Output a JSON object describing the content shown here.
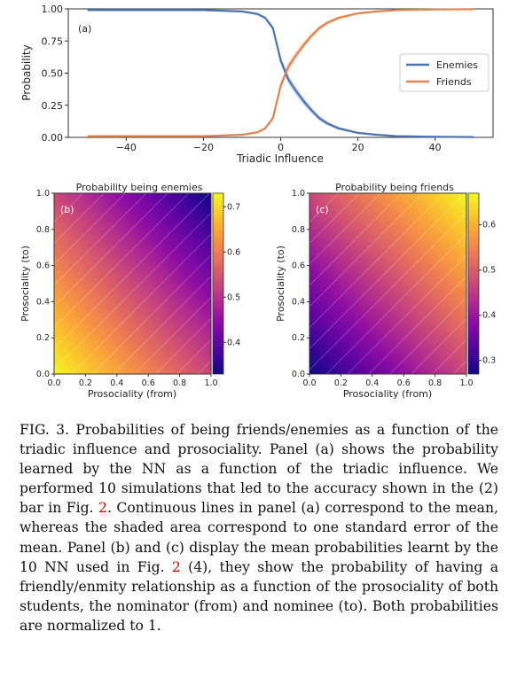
{
  "chart_data": [
    {
      "type": "line",
      "panel_label": "(a)",
      "xlabel": "Triadic Influence",
      "ylabel": "Probability",
      "xlim": [
        -55,
        55
      ],
      "ylim": [
        0,
        1
      ],
      "x_ticks": [
        -40,
        -20,
        0,
        20,
        40
      ],
      "x_tick_labels": [
        "−40",
        "−20",
        "0",
        "20",
        "40"
      ],
      "y_ticks": [
        0,
        0.25,
        0.5,
        0.75,
        1.0
      ],
      "y_tick_labels": [
        "0.00",
        "0.25",
        "0.50",
        "0.75",
        "1.00"
      ],
      "legend_position": "center-right",
      "grid": false,
      "series": [
        {
          "name": "Enemies",
          "color": "#4c72b0",
          "x": [
            -50,
            -40,
            -30,
            -20,
            -10,
            -6,
            -4,
            -2,
            0,
            2,
            4,
            6,
            8,
            10,
            12,
            15,
            20,
            25,
            30,
            40,
            50
          ],
          "values": [
            0.99,
            0.99,
            0.99,
            0.99,
            0.98,
            0.96,
            0.93,
            0.85,
            0.6,
            0.45,
            0.36,
            0.28,
            0.21,
            0.15,
            0.11,
            0.07,
            0.035,
            0.02,
            0.01,
            0.005,
            0.003
          ]
        },
        {
          "name": "Friends",
          "color": "#dd8452",
          "x": [
            -50,
            -40,
            -30,
            -20,
            -10,
            -6,
            -4,
            -2,
            0,
            2,
            4,
            6,
            8,
            10,
            12,
            15,
            20,
            25,
            30,
            40,
            50
          ],
          "values": [
            0.01,
            0.01,
            0.01,
            0.01,
            0.02,
            0.04,
            0.07,
            0.15,
            0.4,
            0.55,
            0.64,
            0.72,
            0.79,
            0.85,
            0.89,
            0.93,
            0.965,
            0.98,
            0.99,
            0.995,
            0.997
          ]
        }
      ]
    },
    {
      "type": "heatmap",
      "panel_label": "(b)",
      "title": "Probability being enemies",
      "xlabel": "Prosociality (from)",
      "ylabel": "Prosociality (to)",
      "xlim": [
        0,
        1
      ],
      "ylim": [
        0,
        1
      ],
      "ticks": [
        0,
        0.2,
        0.4,
        0.6,
        0.8,
        1.0
      ],
      "tick_labels": [
        "0.0",
        "0.2",
        "0.4",
        "0.6",
        "0.8",
        "1.0"
      ],
      "colormap": "plasma",
      "value_range": [
        0.33,
        0.73
      ],
      "colorbar_ticks": [
        0.4,
        0.5,
        0.6,
        0.7
      ],
      "colorbar_tick_labels": [
        "0.4",
        "0.5",
        "0.6",
        "0.7"
      ],
      "corner_values": {
        "x0_y0": 0.73,
        "x1_y0": 0.55,
        "x0_y1": 0.53,
        "x1_y1": 0.33
      }
    },
    {
      "type": "heatmap",
      "panel_label": "(c)",
      "title": "Probability being friends",
      "xlabel": "Prosociality (from)",
      "ylabel": "Prosociality (to)",
      "xlim": [
        0,
        1
      ],
      "ylim": [
        0,
        1
      ],
      "ticks": [
        0,
        0.2,
        0.4,
        0.6,
        0.8,
        1.0
      ],
      "tick_labels": [
        "0.0",
        "0.2",
        "0.4",
        "0.6",
        "0.8",
        "1.0"
      ],
      "colormap": "plasma",
      "value_range": [
        0.27,
        0.67
      ],
      "colorbar_ticks": [
        0.3,
        0.4,
        0.5,
        0.6
      ],
      "colorbar_tick_labels": [
        "0.3",
        "0.4",
        "0.5",
        "0.6"
      ],
      "corner_values": {
        "x0_y0": 0.27,
        "x1_y0": 0.45,
        "x0_y1": 0.47,
        "x1_y1": 0.67
      }
    }
  ],
  "caption": {
    "fig_label": "FIG. 3.",
    "part1": " Probabilities of being friends/enemies as a function of the triadic influence and prosociality. Panel (a) shows the probability learned by the NN as a function of the triadic influence. We performed 10 simulations that led to the accuracy shown in the (2) bar in Fig. ",
    "ref1": "2",
    "part2": ". Continuous lines in panel (a) correspond to the mean, whereas the shaded area correspond to one standard error of the mean. Panel (b) and (c) display the mean probabilities learnt by the 10 NN used in Fig. ",
    "ref2": "2",
    "part3": " (4), they show the probability of having a friendly/enmity relationship as a function of the prosociality of both students, the nominator (from) and nominee (to). Both probabilities are normalized to 1."
  }
}
